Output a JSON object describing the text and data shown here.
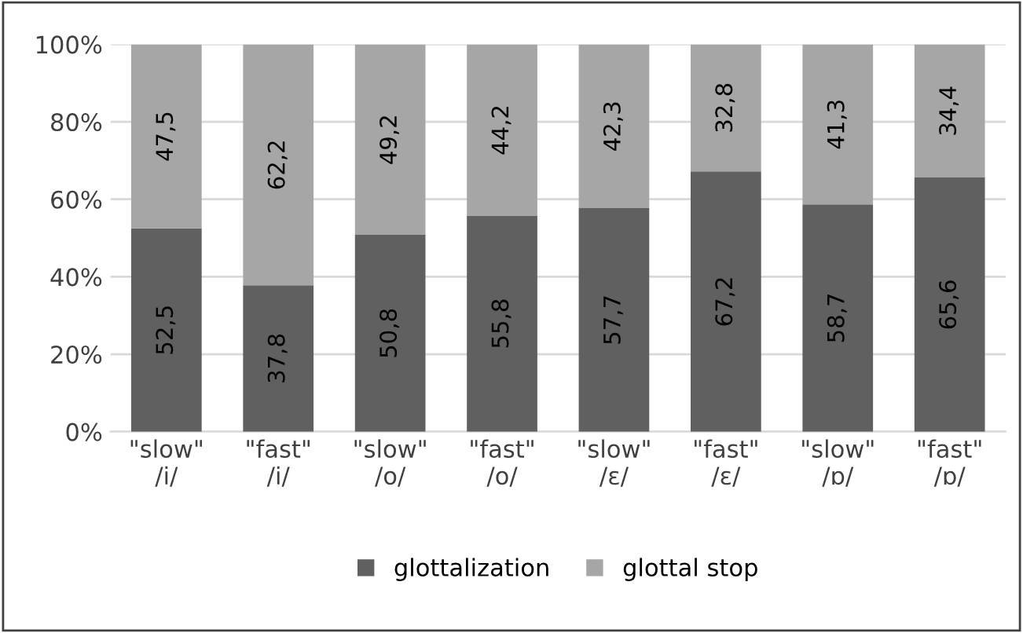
{
  "chart_data": {
    "type": "bar",
    "stacked": true,
    "categories": [
      "\"slow\"\n/i/",
      "\"fast\"\n/i/",
      "\"slow\"\n/o/",
      "\"fast\"\n/o/",
      "\"slow\"\n/ɛ/",
      "\"fast\"\n/ɛ/",
      "\"slow\"\n/ɒ/",
      "\"fast\"\n/ɒ/"
    ],
    "series": [
      {
        "name": "glottalization",
        "color": "#606060",
        "values": [
          52.5,
          37.8,
          50.8,
          55.8,
          57.7,
          67.2,
          58.7,
          65.6
        ],
        "value_labels": [
          "52,5",
          "37,8",
          "50,8",
          "55,8",
          "57,7",
          "67,2",
          "58,7",
          "65,6"
        ]
      },
      {
        "name": "glottal stop",
        "color": "#a6a6a6",
        "values": [
          47.5,
          62.2,
          49.2,
          44.2,
          42.3,
          32.8,
          41.3,
          34.4
        ],
        "value_labels": [
          "47,5",
          "62,2",
          "49,2",
          "44,2",
          "42,3",
          "32,8",
          "41,3",
          "34,4"
        ]
      }
    ],
    "ylim": [
      0,
      100
    ],
    "yticks": [
      {
        "value": 0,
        "label": "0%"
      },
      {
        "value": 20,
        "label": "20%"
      },
      {
        "value": 40,
        "label": "40%"
      },
      {
        "value": 60,
        "label": "60%"
      },
      {
        "value": 80,
        "label": "80%"
      },
      {
        "value": 100,
        "label": "100%"
      }
    ],
    "grid": "y",
    "legend": "bottom"
  }
}
